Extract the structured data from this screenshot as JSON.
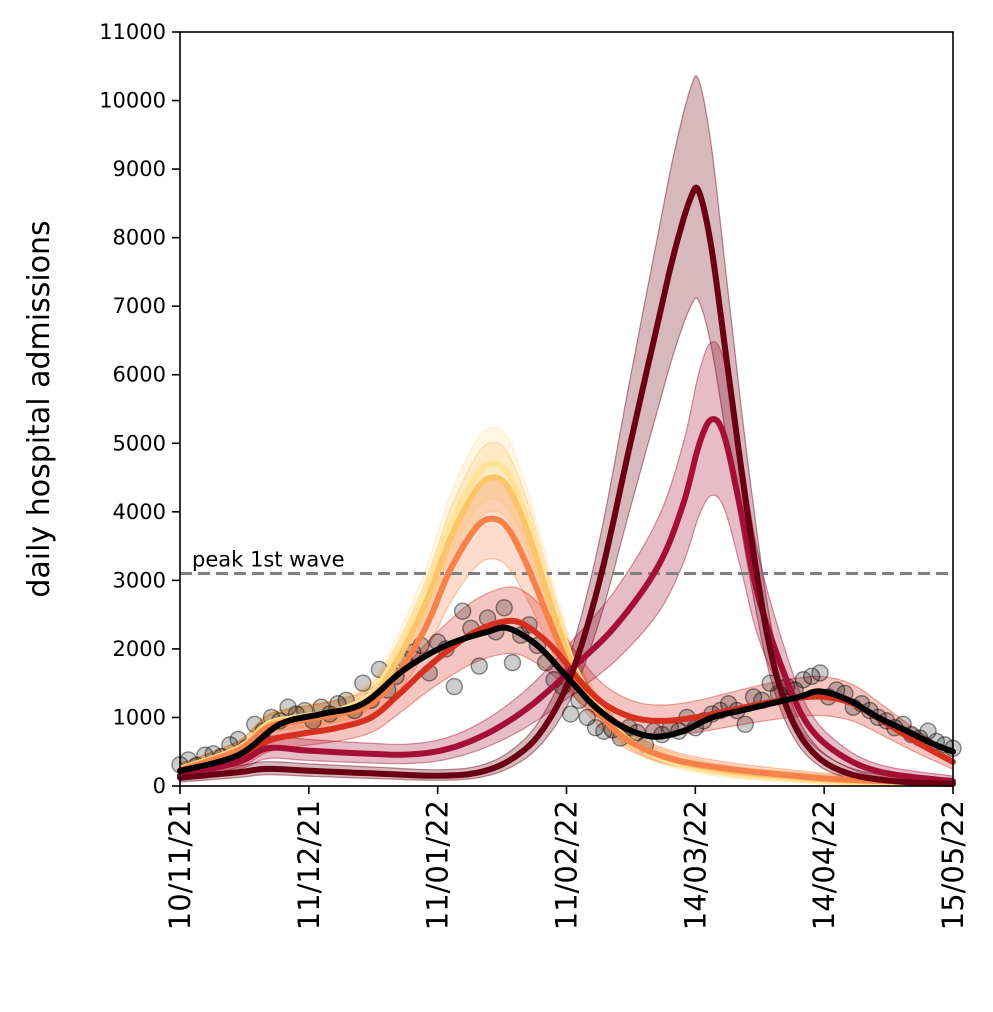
{
  "chart_data": {
    "type": "line",
    "title": "",
    "xlabel": "",
    "ylabel": "daily hospital admissions",
    "ylim": [
      0,
      11000
    ],
    "yticks": [
      0,
      1000,
      2000,
      3000,
      4000,
      5000,
      6000,
      7000,
      8000,
      9000,
      10000,
      11000
    ],
    "xlim": [
      "2021-11-10",
      "2022-05-15"
    ],
    "xtick_labels": [
      "10/11/21",
      "11/12/21",
      "11/01/22",
      "11/02/22",
      "14/03/22",
      "14/04/22",
      "15/05/22"
    ],
    "xtick_dates": [
      "2021-11-10",
      "2021-12-11",
      "2022-01-11",
      "2022-02-11",
      "2022-03-14",
      "2022-04-14",
      "2022-05-15"
    ],
    "grid": false,
    "legend": "none",
    "reference_line": {
      "label": "peak 1st wave",
      "value": 3100,
      "color": "#808080"
    },
    "observed": {
      "color": "#000000",
      "points": [
        [
          "2021-11-10",
          310
        ],
        [
          "2021-11-12",
          380
        ],
        [
          "2021-11-14",
          300
        ],
        [
          "2021-11-16",
          450
        ],
        [
          "2021-11-18",
          470
        ],
        [
          "2021-11-20",
          430
        ],
        [
          "2021-11-22",
          600
        ],
        [
          "2021-11-24",
          680
        ],
        [
          "2021-11-26",
          560
        ],
        [
          "2021-11-28",
          900
        ],
        [
          "2021-11-30",
          800
        ],
        [
          "2021-12-02",
          1000
        ],
        [
          "2021-12-04",
          950
        ],
        [
          "2021-12-06",
          1150
        ],
        [
          "2021-12-08",
          1050
        ],
        [
          "2021-12-10",
          1100
        ],
        [
          "2021-12-12",
          950
        ],
        [
          "2021-12-14",
          1150
        ],
        [
          "2021-12-16",
          1050
        ],
        [
          "2021-12-18",
          1200
        ],
        [
          "2021-12-20",
          1250
        ],
        [
          "2021-12-22",
          1100
        ],
        [
          "2021-12-24",
          1500
        ],
        [
          "2021-12-26",
          1250
        ],
        [
          "2021-12-28",
          1700
        ],
        [
          "2021-12-30",
          1400
        ],
        [
          "2022-01-01",
          1600
        ],
        [
          "2022-01-03",
          1850
        ],
        [
          "2022-01-05",
          1950
        ],
        [
          "2022-01-07",
          2050
        ],
        [
          "2022-01-09",
          1650
        ],
        [
          "2022-01-11",
          2100
        ],
        [
          "2022-01-13",
          2000
        ],
        [
          "2022-01-15",
          1450
        ],
        [
          "2022-01-17",
          2550
        ],
        [
          "2022-01-19",
          2300
        ],
        [
          "2022-01-21",
          1750
        ],
        [
          "2022-01-23",
          2450
        ],
        [
          "2022-01-25",
          2250
        ],
        [
          "2022-01-27",
          2600
        ],
        [
          "2022-01-29",
          1800
        ],
        [
          "2022-01-31",
          2200
        ],
        [
          "2022-02-02",
          2350
        ],
        [
          "2022-02-04",
          2050
        ],
        [
          "2022-02-06",
          1800
        ],
        [
          "2022-02-08",
          1550
        ],
        [
          "2022-02-10",
          1450
        ],
        [
          "2022-02-12",
          1050
        ],
        [
          "2022-02-14",
          1250
        ],
        [
          "2022-02-16",
          1000
        ],
        [
          "2022-02-18",
          850
        ],
        [
          "2022-02-20",
          800
        ],
        [
          "2022-02-22",
          820
        ],
        [
          "2022-02-24",
          700
        ],
        [
          "2022-02-26",
          850
        ],
        [
          "2022-02-28",
          780
        ],
        [
          "2022-03-02",
          600
        ],
        [
          "2022-03-04",
          800
        ],
        [
          "2022-03-06",
          750
        ],
        [
          "2022-03-08",
          850
        ],
        [
          "2022-03-10",
          800
        ],
        [
          "2022-03-12",
          1000
        ],
        [
          "2022-03-14",
          850
        ],
        [
          "2022-03-16",
          950
        ],
        [
          "2022-03-18",
          1050
        ],
        [
          "2022-03-20",
          1100
        ],
        [
          "2022-03-22",
          1200
        ],
        [
          "2022-03-24",
          1100
        ],
        [
          "2022-03-26",
          900
        ],
        [
          "2022-03-28",
          1300
        ],
        [
          "2022-03-30",
          1250
        ],
        [
          "2022-04-01",
          1500
        ],
        [
          "2022-04-03",
          1350
        ],
        [
          "2022-04-05",
          1450
        ],
        [
          "2022-04-07",
          1400
        ],
        [
          "2022-04-09",
          1550
        ],
        [
          "2022-04-11",
          1600
        ],
        [
          "2022-04-13",
          1650
        ],
        [
          "2022-04-15",
          1300
        ],
        [
          "2022-04-17",
          1400
        ],
        [
          "2022-04-19",
          1350
        ],
        [
          "2022-04-21",
          1150
        ],
        [
          "2022-04-23",
          1200
        ],
        [
          "2022-04-25",
          1100
        ],
        [
          "2022-04-27",
          1000
        ],
        [
          "2022-04-29",
          950
        ],
        [
          "2022-05-01",
          850
        ],
        [
          "2022-05-03",
          900
        ],
        [
          "2022-05-05",
          750
        ],
        [
          "2022-05-07",
          700
        ],
        [
          "2022-05-09",
          800
        ],
        [
          "2022-05-11",
          650
        ],
        [
          "2022-05-13",
          600
        ],
        [
          "2022-05-15",
          550
        ]
      ],
      "smoothed": [
        [
          "2021-11-10",
          220
        ],
        [
          "2021-11-24",
          450
        ],
        [
          "2021-12-04",
          900
        ],
        [
          "2021-12-14",
          1050
        ],
        [
          "2021-12-24",
          1200
        ],
        [
          "2022-01-03",
          1700
        ],
        [
          "2022-01-13",
          2050
        ],
        [
          "2022-01-23",
          2250
        ],
        [
          "2022-01-28",
          2300
        ],
        [
          "2022-02-04",
          2050
        ],
        [
          "2022-02-11",
          1600
        ],
        [
          "2022-02-18",
          1150
        ],
        [
          "2022-02-25",
          850
        ],
        [
          "2022-03-04",
          720
        ],
        [
          "2022-03-11",
          800
        ],
        [
          "2022-03-18",
          1000
        ],
        [
          "2022-03-25",
          1100
        ],
        [
          "2022-04-01",
          1200
        ],
        [
          "2022-04-08",
          1300
        ],
        [
          "2022-04-13",
          1380
        ],
        [
          "2022-04-20",
          1250
        ],
        [
          "2022-04-27",
          1000
        ],
        [
          "2022-05-04",
          800
        ],
        [
          "2022-05-10",
          620
        ],
        [
          "2022-05-15",
          500
        ]
      ]
    },
    "series": [
      {
        "color": "#ffe399",
        "values": [
          [
            "2021-11-10",
            250
          ],
          [
            "2021-11-24",
            550
          ],
          [
            "2021-12-01",
            900
          ],
          [
            "2021-12-08",
            1000
          ],
          [
            "2021-12-18",
            1100
          ],
          [
            "2021-12-26",
            1350
          ],
          [
            "2022-01-01",
            1900
          ],
          [
            "2022-01-08",
            2800
          ],
          [
            "2022-01-14",
            3800
          ],
          [
            "2022-01-20",
            4500
          ],
          [
            "2022-01-24",
            4700
          ],
          [
            "2022-01-28",
            4550
          ],
          [
            "2022-02-02",
            3800
          ],
          [
            "2022-02-08",
            2600
          ],
          [
            "2022-02-14",
            1600
          ],
          [
            "2022-02-22",
            900
          ],
          [
            "2022-03-01",
            550
          ],
          [
            "2022-03-10",
            320
          ],
          [
            "2022-03-22",
            180
          ],
          [
            "2022-04-05",
            110
          ],
          [
            "2022-04-20",
            60
          ],
          [
            "2022-05-15",
            30
          ]
        ],
        "band_width": 0.1
      },
      {
        "color": "#fdc56a",
        "values": [
          [
            "2021-11-10",
            240
          ],
          [
            "2021-11-24",
            540
          ],
          [
            "2021-12-01",
            880
          ],
          [
            "2021-12-08",
            980
          ],
          [
            "2021-12-18",
            1080
          ],
          [
            "2021-12-26",
            1300
          ],
          [
            "2022-01-01",
            1800
          ],
          [
            "2022-01-08",
            2650
          ],
          [
            "2022-01-14",
            3600
          ],
          [
            "2022-01-20",
            4300
          ],
          [
            "2022-01-24",
            4500
          ],
          [
            "2022-01-28",
            4350
          ],
          [
            "2022-02-02",
            3650
          ],
          [
            "2022-02-08",
            2500
          ],
          [
            "2022-02-14",
            1550
          ],
          [
            "2022-02-22",
            880
          ],
          [
            "2022-03-01",
            560
          ],
          [
            "2022-03-10",
            360
          ],
          [
            "2022-03-22",
            220
          ],
          [
            "2022-04-05",
            140
          ],
          [
            "2022-04-20",
            80
          ],
          [
            "2022-05-15",
            40
          ]
        ],
        "band_width": 0.1
      },
      {
        "color": "#f7814a",
        "values": [
          [
            "2021-11-10",
            230
          ],
          [
            "2021-11-24",
            520
          ],
          [
            "2021-12-01",
            850
          ],
          [
            "2021-12-08",
            950
          ],
          [
            "2021-12-18",
            1050
          ],
          [
            "2021-12-26",
            1200
          ],
          [
            "2022-01-01",
            1600
          ],
          [
            "2022-01-08",
            2300
          ],
          [
            "2022-01-14",
            3150
          ],
          [
            "2022-01-20",
            3750
          ],
          [
            "2022-01-24",
            3900
          ],
          [
            "2022-01-28",
            3750
          ],
          [
            "2022-02-02",
            3150
          ],
          [
            "2022-02-08",
            2250
          ],
          [
            "2022-02-14",
            1450
          ],
          [
            "2022-02-22",
            850
          ],
          [
            "2022-03-01",
            560
          ],
          [
            "2022-03-10",
            370
          ],
          [
            "2022-03-22",
            250
          ],
          [
            "2022-04-05",
            160
          ],
          [
            "2022-04-20",
            90
          ],
          [
            "2022-05-15",
            50
          ]
        ],
        "band_width": 0.14
      },
      {
        "color": "#d7301f",
        "values": [
          [
            "2021-11-10",
            160
          ],
          [
            "2021-11-24",
            380
          ],
          [
            "2021-12-01",
            650
          ],
          [
            "2021-12-08",
            750
          ],
          [
            "2021-12-18",
            850
          ],
          [
            "2021-12-26",
            1000
          ],
          [
            "2022-01-01",
            1300
          ],
          [
            "2022-01-08",
            1700
          ],
          [
            "2022-01-14",
            2000
          ],
          [
            "2022-01-20",
            2250
          ],
          [
            "2022-01-27",
            2400
          ],
          [
            "2022-02-01",
            2350
          ],
          [
            "2022-02-08",
            2000
          ],
          [
            "2022-02-14",
            1550
          ],
          [
            "2022-02-20",
            1200
          ],
          [
            "2022-02-27",
            1000
          ],
          [
            "2022-03-06",
            950
          ],
          [
            "2022-03-14",
            1000
          ],
          [
            "2022-03-22",
            1100
          ],
          [
            "2022-03-30",
            1200
          ],
          [
            "2022-04-07",
            1280
          ],
          [
            "2022-04-14",
            1300
          ],
          [
            "2022-04-21",
            1200
          ],
          [
            "2022-04-28",
            950
          ],
          [
            "2022-05-06",
            650
          ],
          [
            "2022-05-15",
            350
          ]
        ],
        "band_width": 0.18
      },
      {
        "color": "#a50f35",
        "values": [
          [
            "2021-11-10",
            150
          ],
          [
            "2021-11-24",
            350
          ],
          [
            "2021-12-01",
            550
          ],
          [
            "2021-12-10",
            520
          ],
          [
            "2021-12-22",
            480
          ],
          [
            "2022-01-04",
            460
          ],
          [
            "2022-01-14",
            550
          ],
          [
            "2022-01-24",
            800
          ],
          [
            "2022-02-03",
            1200
          ],
          [
            "2022-02-13",
            1750
          ],
          [
            "2022-02-23",
            2350
          ],
          [
            "2022-03-05",
            3200
          ],
          [
            "2022-03-11",
            4100
          ],
          [
            "2022-03-15",
            5000
          ],
          [
            "2022-03-18",
            5350
          ],
          [
            "2022-03-21",
            5100
          ],
          [
            "2022-03-25",
            4000
          ],
          [
            "2022-03-29",
            2800
          ],
          [
            "2022-04-04",
            1700
          ],
          [
            "2022-04-10",
            900
          ],
          [
            "2022-04-18",
            450
          ],
          [
            "2022-04-28",
            200
          ],
          [
            "2022-05-15",
            70
          ]
        ],
        "band_width": 0.2
      },
      {
        "color": "#6b0013",
        "values": [
          [
            "2021-11-10",
            120
          ],
          [
            "2021-11-24",
            200
          ],
          [
            "2021-12-01",
            250
          ],
          [
            "2021-12-12",
            220
          ],
          [
            "2021-12-28",
            180
          ],
          [
            "2022-01-11",
            150
          ],
          [
            "2022-01-21",
            200
          ],
          [
            "2022-01-29",
            400
          ],
          [
            "2022-02-05",
            800
          ],
          [
            "2022-02-12",
            1600
          ],
          [
            "2022-02-19",
            3000
          ],
          [
            "2022-02-26",
            4900
          ],
          [
            "2022-03-04",
            6500
          ],
          [
            "2022-03-09",
            7800
          ],
          [
            "2022-03-13",
            8600
          ],
          [
            "2022-03-15",
            8650
          ],
          [
            "2022-03-18",
            7800
          ],
          [
            "2022-03-22",
            6000
          ],
          [
            "2022-03-27",
            3800
          ],
          [
            "2022-04-01",
            2000
          ],
          [
            "2022-04-06",
            1000
          ],
          [
            "2022-04-12",
            450
          ],
          [
            "2022-04-20",
            180
          ],
          [
            "2022-05-01",
            70
          ],
          [
            "2022-05-15",
            30
          ]
        ],
        "band_width": 0.18
      }
    ]
  }
}
